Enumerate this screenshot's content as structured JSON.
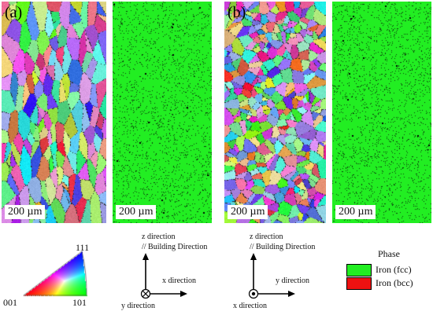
{
  "panels": [
    {
      "label": "(a)",
      "type": "ipf",
      "seed": 11,
      "scale_label": "200 µm",
      "style": "columnar"
    },
    {
      "label": "",
      "type": "phase",
      "seed": 21,
      "scale_label": "200 µm"
    },
    {
      "label": "(b)",
      "type": "ipf",
      "seed": 37,
      "scale_label": "200 µm",
      "style": "fine"
    },
    {
      "label": "",
      "type": "phase",
      "seed": 53,
      "scale_label": "200 µm"
    }
  ],
  "ipf_key": {
    "corner_top": "111",
    "corner_left": "001",
    "corner_right": "101"
  },
  "axes_a": {
    "z_label": "z direction",
    "building_label": "// Building Direction",
    "horizontal_label": "x direction",
    "out_label": "y direction",
    "out_symbol": "into-page"
  },
  "axes_b": {
    "z_label": "z direction",
    "building_label": "// Building Direction",
    "horizontal_label": "y direction",
    "out_label": "x direction",
    "out_symbol": "out-of-page"
  },
  "phase_legend": {
    "title": "Phase",
    "items": [
      {
        "label": "Iron (fcc)",
        "color": "#22ee22"
      },
      {
        "label": "Iron (bcc)",
        "color": "#ee1111"
      }
    ]
  },
  "colors": {
    "phase_fcc": "#22ee22",
    "phase_bcc": "#ee1111"
  }
}
